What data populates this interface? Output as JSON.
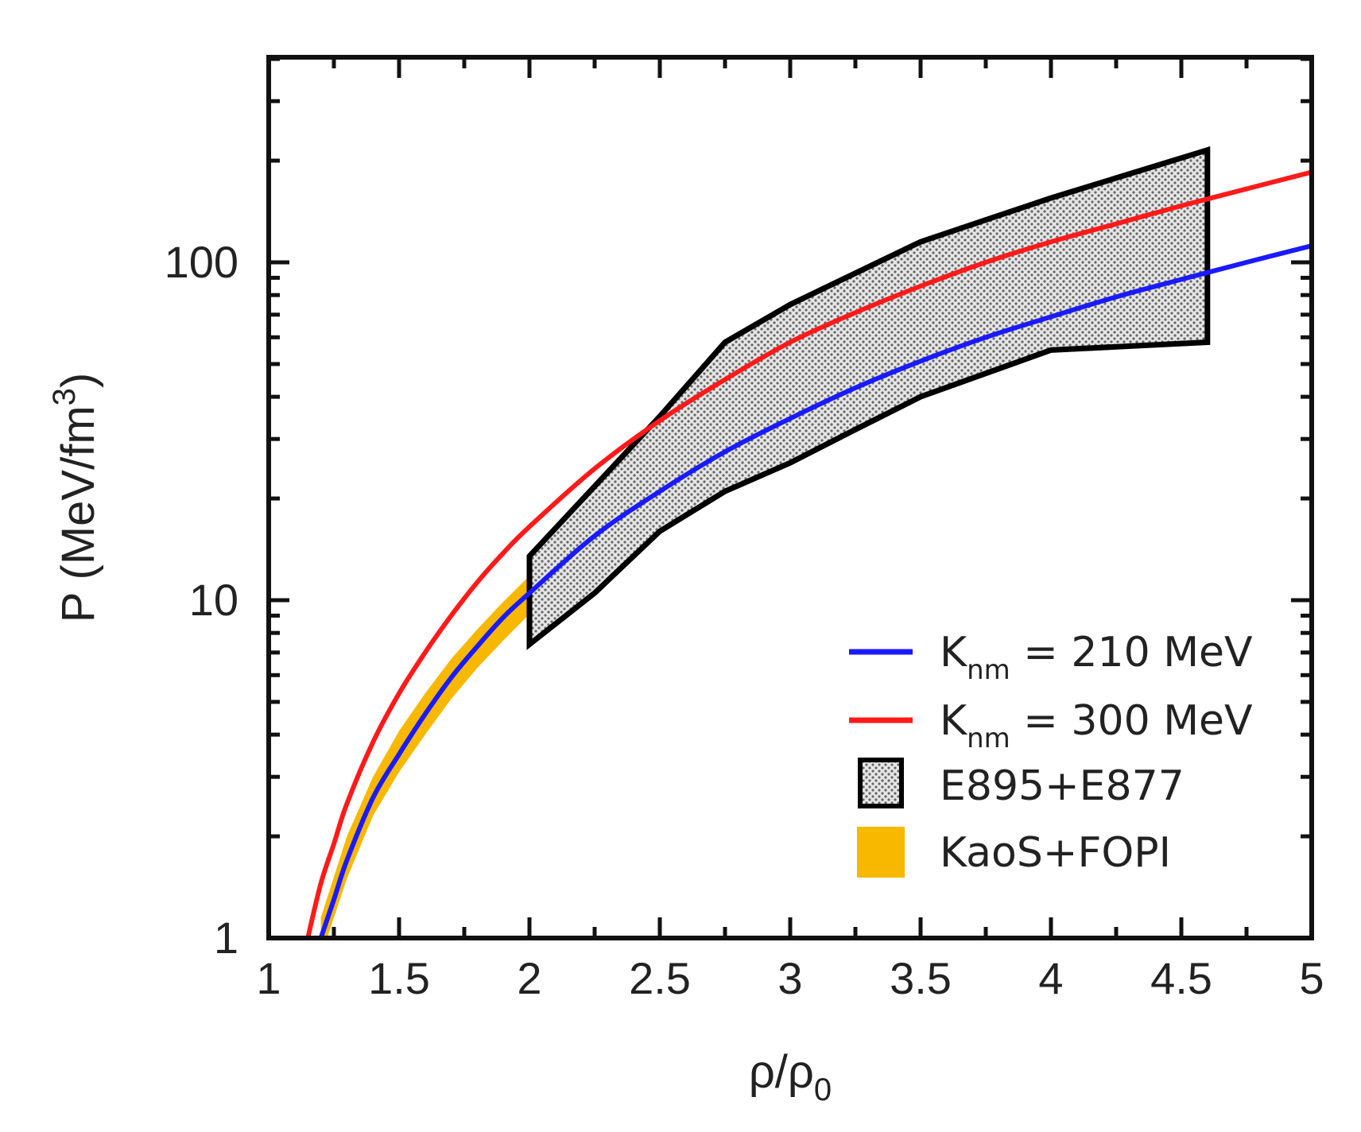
{
  "chart_data": {
    "type": "line",
    "title": "",
    "xlabel": "ρ/ρ",
    "xlabel_sub": "0",
    "ylabel_main": "P (MeV/fm",
    "ylabel_sup": "3",
    "ylabel_close": ")",
    "xlim": [
      1,
      5
    ],
    "ylim": [
      1,
      400
    ],
    "yscale": "log",
    "x_ticks": [
      1,
      1.5,
      2,
      2.5,
      3,
      3.5,
      4,
      4.5,
      5
    ],
    "x_tick_labels": [
      "1",
      "1.5",
      "2",
      "2.5",
      "3",
      "3.5",
      "4",
      "4.5",
      "5"
    ],
    "y_ticks": [
      1,
      10,
      100
    ],
    "y_tick_labels": [
      "1",
      "10",
      "100"
    ],
    "series": [
      {
        "name": "K_nm = 210 MeV",
        "color": "#1a1aff",
        "x": [
          1.2,
          1.25,
          1.3,
          1.4,
          1.5,
          1.6,
          1.7,
          1.8,
          1.9,
          2.0,
          2.25,
          2.5,
          2.75,
          3.0,
          3.25,
          3.5,
          3.75,
          4.0,
          4.25,
          4.5,
          4.75,
          5.0
        ],
        "y": [
          1.0,
          1.3,
          1.7,
          2.6,
          3.5,
          4.6,
          5.9,
          7.3,
          8.9,
          10.5,
          15.5,
          21.0,
          27.5,
          34.5,
          42.5,
          51.0,
          60.0,
          69.0,
          79.0,
          89.0,
          100.0,
          112.0
        ]
      },
      {
        "name": "K_nm = 300 MeV",
        "color": "#ff1a1a",
        "x": [
          1.15,
          1.2,
          1.25,
          1.3,
          1.4,
          1.5,
          1.6,
          1.7,
          1.8,
          1.9,
          2.0,
          2.25,
          2.5,
          2.75,
          3.0,
          3.25,
          3.5,
          3.75,
          4.0,
          4.25,
          4.5,
          4.75,
          5.0
        ],
        "y": [
          1.0,
          1.45,
          1.9,
          2.5,
          3.8,
          5.3,
          7.0,
          9.0,
          11.3,
          13.8,
          16.5,
          24.5,
          34.0,
          45.0,
          58.0,
          71.0,
          85.0,
          100.0,
          115.0,
          130.0,
          147.0,
          165.0,
          185.0
        ]
      }
    ],
    "bands": [
      {
        "name": "E895+E877",
        "fill": "#d4d4d4",
        "stroke": "#000000",
        "upper_x": [
          2.0,
          2.5,
          2.75,
          3.0,
          3.5,
          4.0,
          4.6
        ],
        "upper_y": [
          13.5,
          35.0,
          58.0,
          75.0,
          115.0,
          155.0,
          215.0
        ],
        "lower_x": [
          2.0,
          2.25,
          2.5,
          2.75,
          3.0,
          3.25,
          3.5,
          4.0,
          4.6
        ],
        "lower_y": [
          7.4,
          10.5,
          16.0,
          21.0,
          25.5,
          32.0,
          40.0,
          55.0,
          58.0
        ]
      },
      {
        "name": "KaoS+FOPI",
        "fill": "#f8b800",
        "upper_x": [
          1.2,
          1.3,
          1.4,
          1.5,
          1.6,
          1.7,
          1.8,
          1.9,
          2.0
        ],
        "upper_y": [
          1.15,
          2.0,
          3.0,
          4.1,
          5.3,
          6.7,
          8.2,
          9.9,
          11.8
        ],
        "lower_x": [
          1.2,
          1.3,
          1.4,
          1.5,
          1.6,
          1.7,
          1.8,
          1.9,
          2.0
        ],
        "lower_y": [
          0.88,
          1.5,
          2.3,
          3.1,
          4.0,
          5.1,
          6.3,
          7.6,
          9.1
        ]
      }
    ],
    "legend": {
      "position": "bottom-right",
      "entries": [
        {
          "kind": "line",
          "color": "#1a1aff",
          "main": "K",
          "sub": "nm",
          "rest": " = 210 MeV"
        },
        {
          "kind": "line",
          "color": "#ff1a1a",
          "main": "K",
          "sub": "nm",
          "rest": " = 300 MeV"
        },
        {
          "kind": "hatched",
          "color": "#d4d4d4",
          "main": "E895+E877",
          "sub": "",
          "rest": ""
        },
        {
          "kind": "solid",
          "color": "#f8b800",
          "main": "KaoS+FOPI",
          "sub": "",
          "rest": ""
        }
      ]
    }
  }
}
